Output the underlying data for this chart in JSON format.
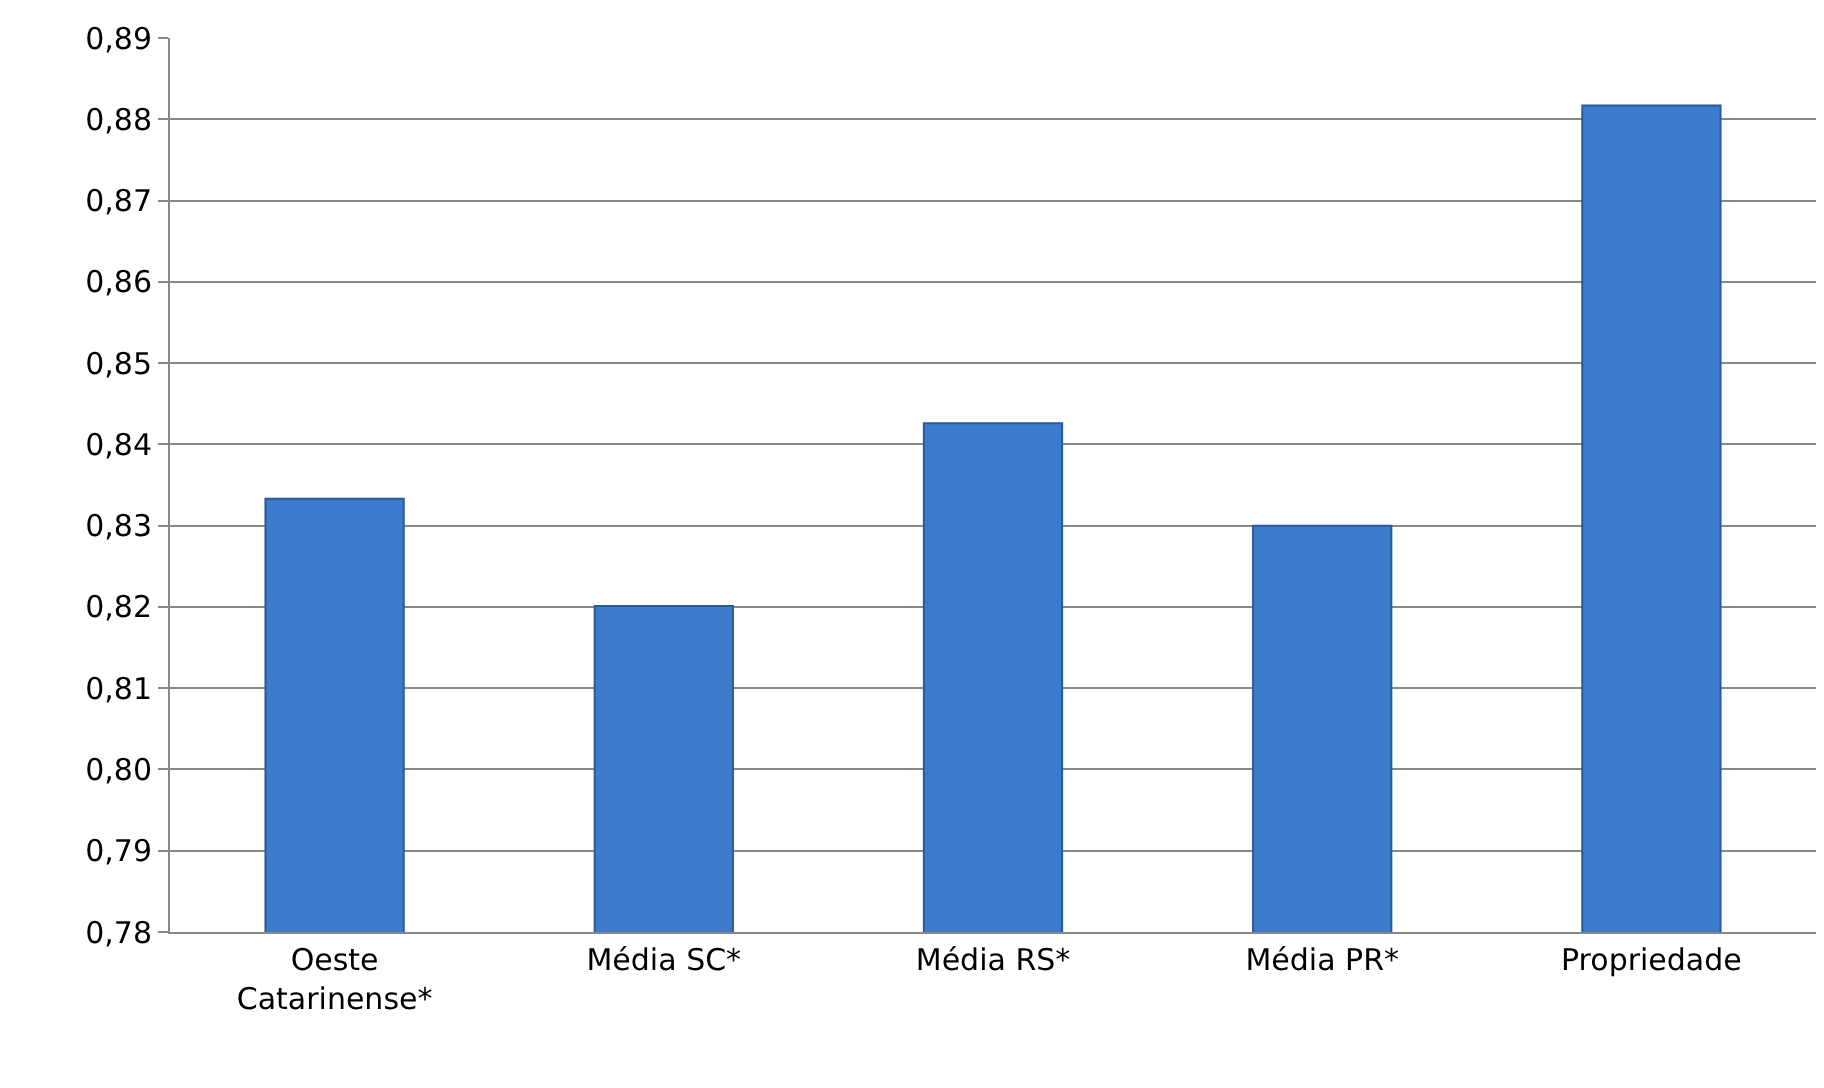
{
  "chart_data": {
    "type": "bar",
    "categories": [
      "Oeste Catarinense*",
      "Média SC*",
      "Média RS*",
      "Média PR*",
      "Propriedade"
    ],
    "values": [
      0.8333,
      0.8201,
      0.8426,
      0.83,
      0.8817
    ],
    "color": "#3d7ccc",
    "ylim": [
      0.78,
      0.89
    ],
    "yticks": [
      {
        "value": 0.78,
        "label": "0,78"
      },
      {
        "value": 0.79,
        "label": "0,79"
      },
      {
        "value": 0.8,
        "label": "0,80"
      },
      {
        "value": 0.81,
        "label": "0,81"
      },
      {
        "value": 0.82,
        "label": "0,82"
      },
      {
        "value": 0.83,
        "label": "0,83"
      },
      {
        "value": 0.84,
        "label": "0,84"
      },
      {
        "value": 0.85,
        "label": "0,85"
      },
      {
        "value": 0.86,
        "label": "0,86"
      },
      {
        "value": 0.87,
        "label": "0,87"
      },
      {
        "value": 0.88,
        "label": "0,88"
      },
      {
        "value": 0.89,
        "label": "0,89"
      }
    ],
    "grid": "y"
  }
}
